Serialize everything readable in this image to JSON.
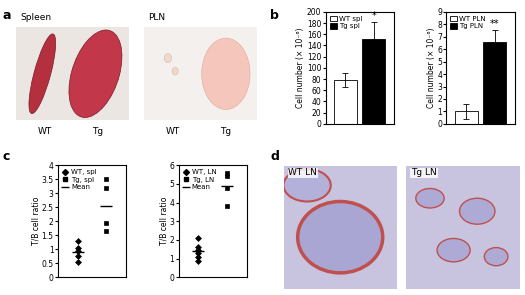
{
  "panel_labels": [
    "a",
    "b",
    "c",
    "d"
  ],
  "panel_a": {
    "photos": [
      {
        "title": "Spleen",
        "labels": [
          "WT",
          "Tg"
        ]
      },
      {
        "title": "PLN",
        "labels": [
          "WT",
          "Tg"
        ]
      }
    ]
  },
  "chart_data": [
    {
      "type": "bar",
      "y_label": "Cell number (× 10⁻⁶)",
      "categories": [
        null,
        null
      ],
      "series": [
        {
          "name": "WT spl",
          "color": "#ffffff",
          "values": [
            78,
            null
          ],
          "errors": [
            12,
            null
          ]
        },
        {
          "name": "Tg spl",
          "color": "#000000",
          "values": [
            null,
            152
          ],
          "errors": [
            null,
            30
          ]
        }
      ],
      "ylim": [
        0,
        200
      ],
      "yticks": [
        0,
        20,
        40,
        60,
        80,
        100,
        120,
        140,
        160,
        180,
        200
      ],
      "legend": "upper left",
      "tick_labels": "y",
      "annotations": [
        {
          "text": "*",
          "category": 1
        }
      ]
    },
    {
      "type": "bar",
      "y_label": "Cell number (× 10⁻⁶)",
      "categories": [
        null,
        null
      ],
      "series": [
        {
          "name": "WT PLN",
          "color": "#ffffff",
          "values": [
            1.0,
            null
          ],
          "errors": [
            0.6,
            null
          ]
        },
        {
          "name": "Tg PLN",
          "color": "#000000",
          "values": [
            null,
            6.6
          ],
          "errors": [
            null,
            0.9
          ]
        }
      ],
      "ylim": [
        0,
        9
      ],
      "yticks": [
        0,
        1,
        2,
        3,
        4,
        5,
        6,
        7,
        8,
        9
      ],
      "legend": "upper left",
      "tick_labels": "y",
      "annotations": [
        {
          "text": "**",
          "category": 1
        }
      ]
    },
    {
      "type": "scatter",
      "y_label": "T/B cell ratio",
      "categories": [
        null,
        null
      ],
      "series": [
        {
          "name": "WT, spl",
          "color": "#000000",
          "marker": "diamond",
          "values": [
            [
              1.3,
              1.05,
              0.95,
              0.75,
              0.55
            ],
            []
          ]
        },
        {
          "name": "Tg, spl",
          "color": "#000000",
          "marker": "square",
          "values": [
            [],
            [
              3.5,
              3.2,
              1.95,
              1.65
            ]
          ]
        },
        {
          "name": "Mean",
          "color": "#000000",
          "marker": "line",
          "values": [
            [
              0.92
            ],
            [
              2.55
            ]
          ]
        }
      ],
      "ylim": [
        0,
        4
      ],
      "yticks": [
        0,
        0.5,
        1,
        1.5,
        2,
        2.5,
        3,
        3.5,
        4
      ],
      "legend": "upper left",
      "tick_labels": "y"
    },
    {
      "type": "scatter",
      "y_label": "T/B cell ratio",
      "categories": [
        null,
        null
      ],
      "series": [
        {
          "name": "WT, LN",
          "color": "#000000",
          "marker": "diamond",
          "values": [
            [
              2.1,
              1.6,
              1.45,
              1.3,
              1.1,
              0.85
            ],
            []
          ]
        },
        {
          "name": "Tg, LN",
          "color": "#000000",
          "marker": "square",
          "values": [
            [],
            [
              5.6,
              5.4,
              4.8,
              3.8
            ]
          ]
        },
        {
          "name": "Mean",
          "color": "#000000",
          "marker": "line",
          "values": [
            [
              1.4
            ],
            [
              4.9
            ]
          ]
        }
      ],
      "ylim": [
        0,
        6
      ],
      "yticks": [
        0,
        1,
        2,
        3,
        4,
        5,
        6
      ],
      "legend": "upper left",
      "tick_labels": "y"
    }
  ],
  "panel_d": {
    "photos": [
      {
        "label": "WT LN"
      },
      {
        "label": "Tg LN"
      }
    ]
  }
}
